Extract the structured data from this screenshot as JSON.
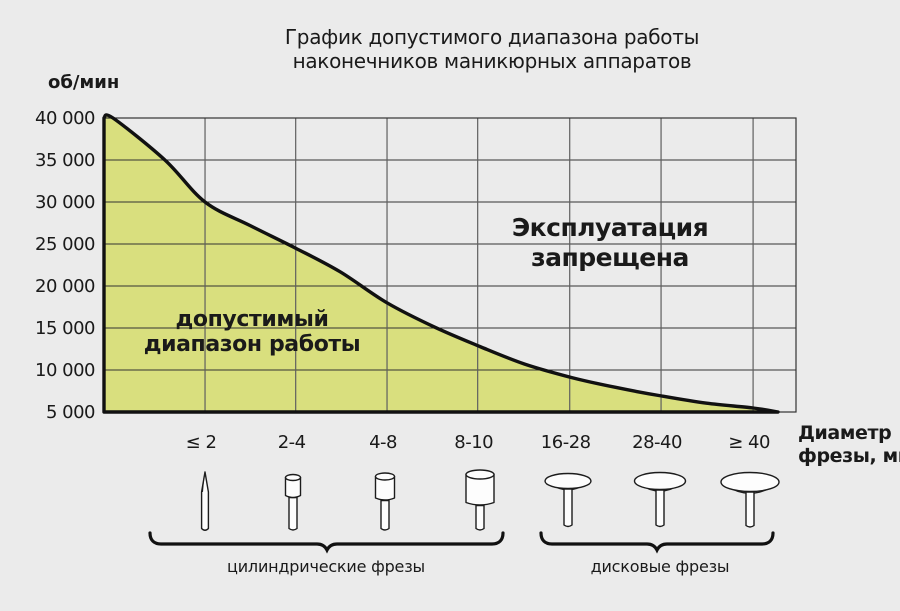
{
  "title": {
    "line1": "График допустимого диапазона работы",
    "line2": "наконечников маникюрных аппаратов"
  },
  "y_axis": {
    "title": "об/мин",
    "tick_labels": [
      "40 000",
      "35 000",
      "30 000",
      "25 000",
      "20 000",
      "15 000",
      "10 000",
      "5 000"
    ]
  },
  "x_axis": {
    "title_line1": "Диаметр",
    "title_line2": "фрезы, мм",
    "category_labels": [
      "≤ 2",
      "2-4",
      "4-8",
      "8-10",
      "16-28",
      "28-40",
      "≥ 40"
    ]
  },
  "regions": {
    "allowed_line1": "допустимый",
    "allowed_line2": "диапазон работы",
    "forbidden_line1": "Эксплуатация",
    "forbidden_line2": "запрещена"
  },
  "groups": {
    "cylindrical_label": "цилиндрические фрезы",
    "disc_label": "дисковые фрезы"
  },
  "icons": [
    "needle-burr-icon",
    "small-cylinder-burr-icon",
    "medium-cylinder-burr-icon",
    "large-cylinder-burr-icon",
    "small-disc-burr-icon",
    "medium-disc-burr-icon",
    "large-disc-burr-icon"
  ],
  "colors": {
    "background": "#ebebeb",
    "allowed_fill": "#d9df7e",
    "outline": "#111111",
    "grid_horizontal": "#333333",
    "grid_vertical": "#5f5f5f",
    "plot_border": "#333333",
    "text": "#1a1a1a"
  },
  "chart_data": {
    "type": "area",
    "title": "График допустимого диапазона работы наконечников маникюрных аппаратов",
    "xlabel": "Диаметр фрезы, мм",
    "ylabel": "об/мин",
    "ylim": [
      5000,
      40000
    ],
    "grid": true,
    "y_ticks": [
      {
        "value": 40000,
        "label": "40 000"
      },
      {
        "value": 35000,
        "label": "35 000"
      },
      {
        "value": 30000,
        "label": "30 000"
      },
      {
        "value": 25000,
        "label": "25 000"
      },
      {
        "value": 20000,
        "label": "20 000"
      },
      {
        "value": 15000,
        "label": "15 000"
      },
      {
        "value": 10000,
        "label": "10 000"
      }
    ],
    "y_baseline": {
      "value": 5000,
      "label": "5 000"
    },
    "categories": [
      {
        "label": "≤ 2",
        "t": 0.146
      },
      {
        "label": "2-4",
        "t": 0.277
      },
      {
        "label": "4-8",
        "t": 0.409
      },
      {
        "label": "8-10",
        "t": 0.54
      },
      {
        "label": "16-28",
        "t": 0.673
      },
      {
        "label": "28-40",
        "t": 0.805
      },
      {
        "label": "≥ 40",
        "t": 0.938
      }
    ],
    "limit_rpm_at_category_boundaries": [
      30000,
      24500,
      18000,
      12800,
      9100,
      6900,
      5500
    ],
    "limit_curve_points": [
      {
        "t": 0.0,
        "rpm": 40000
      },
      {
        "t": 0.013,
        "rpm": 40000
      },
      {
        "t": 0.088,
        "rpm": 35000
      },
      {
        "t": 0.146,
        "rpm": 30000
      },
      {
        "t": 0.211,
        "rpm": 27200
      },
      {
        "t": 0.277,
        "rpm": 24500
      },
      {
        "t": 0.341,
        "rpm": 21700
      },
      {
        "t": 0.409,
        "rpm": 18000
      },
      {
        "t": 0.478,
        "rpm": 15100
      },
      {
        "t": 0.543,
        "rpm": 12800
      },
      {
        "t": 0.608,
        "rpm": 10700
      },
      {
        "t": 0.676,
        "rpm": 9100
      },
      {
        "t": 0.741,
        "rpm": 7900
      },
      {
        "t": 0.806,
        "rpm": 6900
      },
      {
        "t": 0.871,
        "rpm": 6050
      },
      {
        "t": 0.938,
        "rpm": 5480
      },
      {
        "t": 0.974,
        "rpm": 5000
      }
    ],
    "annotations": [
      "допустимый диапазон работы",
      "Эксплуатация запрещена"
    ]
  }
}
